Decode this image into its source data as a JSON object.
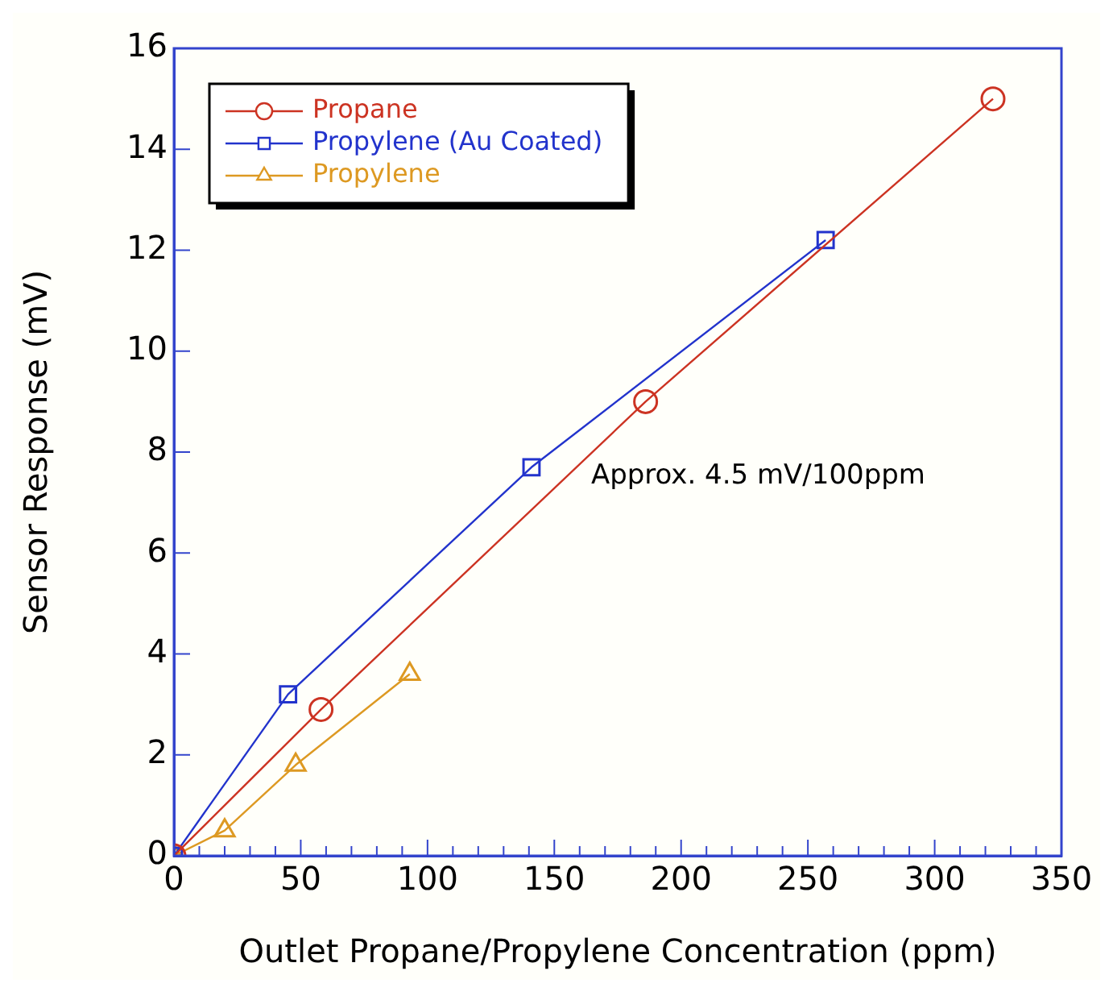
{
  "chart_data": {
    "type": "line",
    "xlabel": "Outlet Propane/Propylene Concentration (ppm)",
    "ylabel": "Sensor Response (mV)",
    "xlim": [
      0,
      350
    ],
    "ylim": [
      0,
      16
    ],
    "xticks": [
      0,
      {
        "value": 10,
        "label": null
      },
      {
        "value": 20,
        "label": null
      },
      {
        "value": 30,
        "label": null
      },
      {
        "value": 40,
        "label": null
      },
      50,
      {
        "value": 60,
        "label": null
      },
      {
        "value": 70,
        "label": null
      },
      {
        "value": 80,
        "label": null
      },
      {
        "value": 90,
        "label": null
      },
      100,
      {
        "value": 110,
        "label": null
      },
      {
        "value": 120,
        "label": null
      },
      {
        "value": 130,
        "label": null
      },
      {
        "value": 140,
        "label": null
      },
      150,
      {
        "value": 160,
        "label": null
      },
      {
        "value": 170,
        "label": null
      },
      {
        "value": 180,
        "label": null
      },
      {
        "value": 190,
        "label": null
      },
      200,
      {
        "value": 210,
        "label": null
      },
      {
        "value": 220,
        "label": null
      },
      {
        "value": 230,
        "label": null
      },
      {
        "value": 240,
        "label": null
      },
      250,
      {
        "value": 260,
        "label": null
      },
      {
        "value": 270,
        "label": null
      },
      {
        "value": 280,
        "label": null
      },
      {
        "value": 290,
        "label": null
      },
      300,
      {
        "value": 310,
        "label": null
      },
      {
        "value": 320,
        "label": null
      },
      {
        "value": 330,
        "label": null
      },
      {
        "value": 340,
        "label": null
      },
      350
    ],
    "yticks": [
      0,
      2,
      4,
      6,
      8,
      10,
      12,
      14,
      16
    ],
    "grid": false,
    "legend": "top left",
    "line_style": "solid",
    "annotations": [
      "Approx. 4.5 mV/100ppm"
    ],
    "series": [
      {
        "name": "Propane",
        "color": "#cc3322",
        "marker": "circle",
        "x": [
          0,
          58,
          186,
          323
        ],
        "values": [
          0,
          2.9,
          9.0,
          15.0
        ]
      },
      {
        "name": "Propylene (Au Coated)",
        "color": "#2233cc",
        "marker": "square",
        "x": [
          0,
          45,
          141,
          257
        ],
        "values": [
          0,
          3.2,
          7.7,
          12.2
        ]
      },
      {
        "name": "Propylene",
        "color": "#dd9922",
        "marker": "triangle",
        "x": [
          0,
          20,
          48,
          93
        ],
        "values": [
          0,
          0.5,
          1.8,
          3.6
        ]
      }
    ]
  }
}
